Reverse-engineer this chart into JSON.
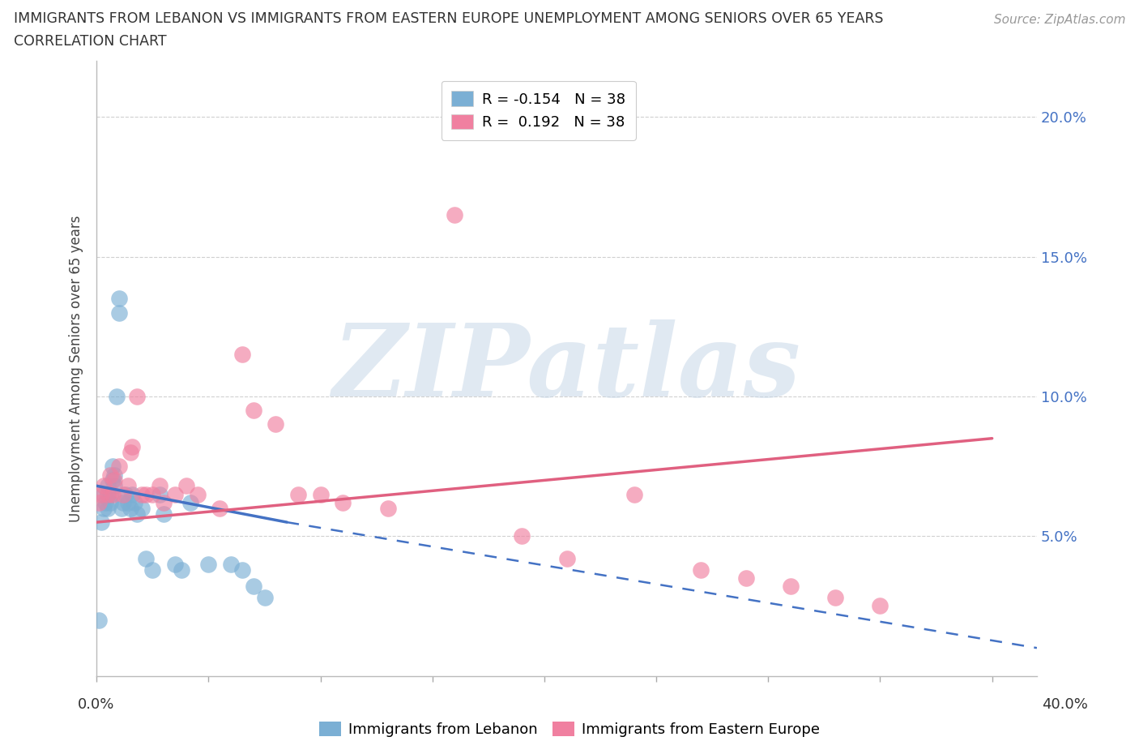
{
  "title_line1": "IMMIGRANTS FROM LEBANON VS IMMIGRANTS FROM EASTERN EUROPE UNEMPLOYMENT AMONG SENIORS OVER 65 YEARS",
  "title_line2": "CORRELATION CHART",
  "source": "Source: ZipAtlas.com",
  "ylabel": "Unemployment Among Seniors over 65 years",
  "legend_R_leb": "-0.154",
  "legend_N_leb": "38",
  "legend_R_ee": "0.192",
  "legend_N_ee": "38",
  "ylim": [
    0.0,
    0.22
  ],
  "xlim": [
    0.0,
    0.42
  ],
  "yticks": [
    0.05,
    0.1,
    0.15,
    0.2
  ],
  "ytick_labels": [
    "5.0%",
    "10.0%",
    "15.0%",
    "20.0%"
  ],
  "xticks": [
    0.0,
    0.05,
    0.1,
    0.15,
    0.2,
    0.25,
    0.3,
    0.35,
    0.4
  ],
  "grid_color": "#d0d0d0",
  "bg_color": "#ffffff",
  "watermark_text": "ZIPatlas",
  "watermark_color": "#c8d8e8",
  "leb_color": "#7bafd4",
  "ee_color": "#f080a0",
  "leb_line_color": "#4472c4",
  "ee_line_color": "#e06080",
  "leb_x": [
    0.001,
    0.002,
    0.003,
    0.003,
    0.004,
    0.005,
    0.005,
    0.005,
    0.006,
    0.006,
    0.007,
    0.007,
    0.008,
    0.008,
    0.009,
    0.01,
    0.01,
    0.011,
    0.012,
    0.013,
    0.014,
    0.015,
    0.016,
    0.017,
    0.018,
    0.02,
    0.022,
    0.025,
    0.028,
    0.03,
    0.035,
    0.038,
    0.042,
    0.05,
    0.06,
    0.065,
    0.07,
    0.075
  ],
  "leb_y": [
    0.02,
    0.055,
    0.06,
    0.065,
    0.062,
    0.06,
    0.065,
    0.068,
    0.062,
    0.065,
    0.07,
    0.075,
    0.072,
    0.068,
    0.1,
    0.13,
    0.135,
    0.06,
    0.062,
    0.065,
    0.062,
    0.06,
    0.065,
    0.062,
    0.058,
    0.06,
    0.042,
    0.038,
    0.065,
    0.058,
    0.04,
    0.038,
    0.062,
    0.04,
    0.04,
    0.038,
    0.032,
    0.028
  ],
  "ee_x": [
    0.001,
    0.002,
    0.003,
    0.005,
    0.006,
    0.007,
    0.008,
    0.01,
    0.012,
    0.014,
    0.015,
    0.016,
    0.018,
    0.02,
    0.022,
    0.025,
    0.028,
    0.03,
    0.035,
    0.04,
    0.045,
    0.055,
    0.065,
    0.07,
    0.08,
    0.09,
    0.1,
    0.11,
    0.13,
    0.16,
    0.19,
    0.21,
    0.24,
    0.27,
    0.29,
    0.31,
    0.33,
    0.35
  ],
  "ee_y": [
    0.062,
    0.065,
    0.068,
    0.065,
    0.072,
    0.065,
    0.07,
    0.075,
    0.065,
    0.068,
    0.08,
    0.082,
    0.1,
    0.065,
    0.065,
    0.065,
    0.068,
    0.062,
    0.065,
    0.068,
    0.065,
    0.06,
    0.115,
    0.095,
    0.09,
    0.065,
    0.065,
    0.062,
    0.06,
    0.165,
    0.05,
    0.042,
    0.065,
    0.038,
    0.035,
    0.032,
    0.028,
    0.025
  ],
  "leb_trend_x0": 0.0,
  "leb_trend_x1": 0.085,
  "leb_trend_x2": 0.42,
  "leb_trend_y0": 0.068,
  "leb_trend_y1": 0.055,
  "leb_trend_y2": 0.01,
  "ee_trend_x0": 0.0,
  "ee_trend_x1": 0.4,
  "ee_trend_y0": 0.055,
  "ee_trend_y1": 0.085
}
